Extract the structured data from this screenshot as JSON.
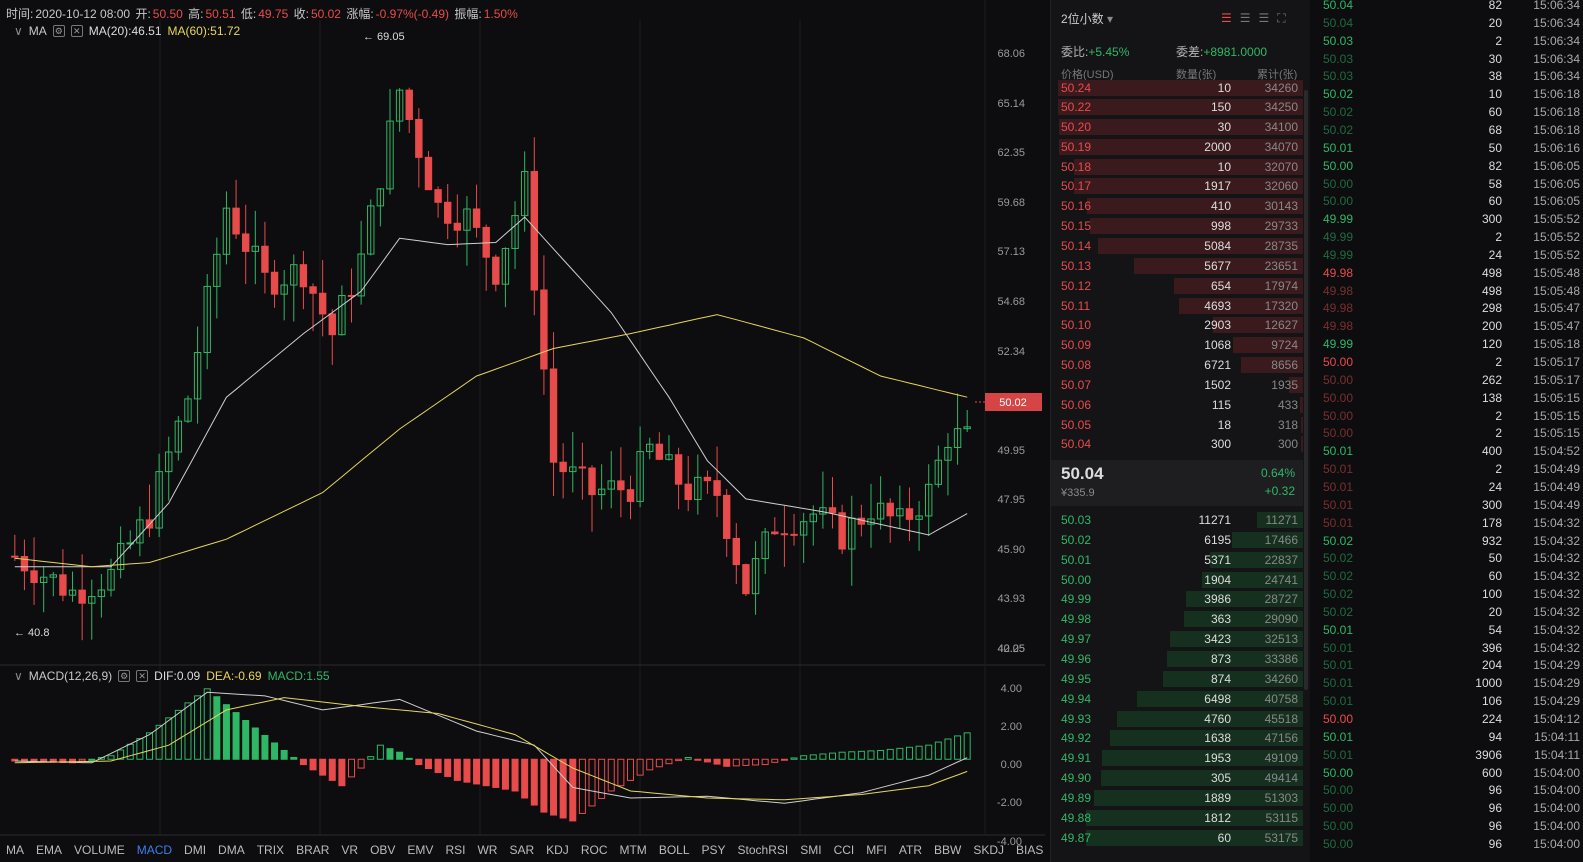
{
  "ohlc": {
    "time_label": "时间:",
    "time": "2020-10-12 08:00",
    "open_label": "开:",
    "open": "50.50",
    "high_label": "高:",
    "high": "50.51",
    "low_label": "低:",
    "low": "49.75",
    "close_label": "收:",
    "close": "50.02",
    "chg_label": "涨幅:",
    "chg": "-0.97%(-0.49)",
    "amp_label": "振幅:",
    "amp": "1.50%"
  },
  "ma_row": {
    "name": "MA",
    "ma20": "MA(20):46.51",
    "ma60": "MA(60):51.72"
  },
  "macd_row": {
    "name": "MACD(12,26,9)",
    "dif": "DIF:0.09",
    "dea": "DEA:-0.69",
    "macd": "MACD:1.55"
  },
  "annotations": {
    "high": "← 69.05",
    "low": "← 40.8",
    "current": "50.02"
  },
  "price_axis": [
    "68.06",
    "65.14",
    "62.35",
    "59.68",
    "57.13",
    "54.68",
    "52.34",
    "49.95",
    "47.95",
    "45.90",
    "43.93",
    "42.05",
    "40.25"
  ],
  "macd_axis": [
    "4.00",
    "2.00",
    "0.00",
    "-2.00",
    "-4.00"
  ],
  "indicator_tabs": [
    "MA",
    "EMA",
    "VOLUME",
    "MACD",
    "DMI",
    "DMA",
    "TRIX",
    "BRAR",
    "VR",
    "OBV",
    "EMV",
    "RSI",
    "WR",
    "SAR",
    "KDJ",
    "ROC",
    "MTM",
    "BOLL",
    "PSY",
    "StochRSI",
    "SMI",
    "CCI",
    "MFI",
    "ATR",
    "BBW",
    "SKDJ",
    "BIAS"
  ],
  "active_tab": "MACD",
  "colors": {
    "up": "#2fb765",
    "down": "#e84b4b",
    "ma20": "#cfcfcf",
    "ma60": "#e6d65a",
    "accent": "#3d7df0"
  },
  "chart_data": {
    "type": "candlestick",
    "ma20": "46.51",
    "ma60": "51.72",
    "high_marker": 69.05,
    "low_marker": 40.8,
    "last": 50.02,
    "macd": {
      "dif": 0.09,
      "dea": -0.69,
      "macd": 1.55
    }
  },
  "orderbook": {
    "precision": "2位小数",
    "ratio_label": "委比:",
    "ratio": "+5.45%",
    "diff_label": "委差:",
    "diff": "+8981.0000",
    "col_price": "价格(USD)",
    "col_qty": "数量(张)",
    "col_cum": "累计(张)",
    "asks": [
      [
        "50.24",
        "10",
        "34260"
      ],
      [
        "50.22",
        "150",
        "34250"
      ],
      [
        "50.20",
        "30",
        "34100"
      ],
      [
        "50.19",
        "2000",
        "34070"
      ],
      [
        "50.18",
        "10",
        "32070"
      ],
      [
        "50.17",
        "1917",
        "32060"
      ],
      [
        "50.16",
        "410",
        "30143"
      ],
      [
        "50.15",
        "998",
        "29733"
      ],
      [
        "50.14",
        "5084",
        "28735"
      ],
      [
        "50.13",
        "5677",
        "23651"
      ],
      [
        "50.12",
        "654",
        "17974"
      ],
      [
        "50.11",
        "4693",
        "17320"
      ],
      [
        "50.10",
        "2903",
        "12627"
      ],
      [
        "50.09",
        "1068",
        "9724"
      ],
      [
        "50.08",
        "6721",
        "8656"
      ],
      [
        "50.07",
        "1502",
        "1935"
      ],
      [
        "50.06",
        "115",
        "433"
      ],
      [
        "50.05",
        "18",
        "318"
      ],
      [
        "50.04",
        "300",
        "300"
      ]
    ],
    "last": "50.04",
    "last_cny": "¥335.9",
    "last_pct": "0.64%",
    "last_chg": "+0.32",
    "bids": [
      [
        "50.03",
        "11271",
        "11271"
      ],
      [
        "50.02",
        "6195",
        "17466"
      ],
      [
        "50.01",
        "5371",
        "22837"
      ],
      [
        "50.00",
        "1904",
        "24741"
      ],
      [
        "49.99",
        "3986",
        "28727"
      ],
      [
        "49.98",
        "363",
        "29090"
      ],
      [
        "49.97",
        "3423",
        "32513"
      ],
      [
        "49.96",
        "873",
        "33386"
      ],
      [
        "49.95",
        "874",
        "34260"
      ],
      [
        "49.94",
        "6498",
        "40758"
      ],
      [
        "49.93",
        "4760",
        "45518"
      ],
      [
        "49.92",
        "1638",
        "47156"
      ],
      [
        "49.91",
        "1953",
        "49109"
      ],
      [
        "49.90",
        "305",
        "49414"
      ],
      [
        "49.89",
        "1889",
        "51303"
      ],
      [
        "49.88",
        "1812",
        "53115"
      ],
      [
        "49.87",
        "60",
        "53175"
      ]
    ]
  },
  "trades": [
    [
      "50.04",
      "82",
      "15:06:34",
      "g"
    ],
    [
      "50.04",
      "20",
      "15:06:34",
      "gd"
    ],
    [
      "50.03",
      "2",
      "15:06:34",
      "g"
    ],
    [
      "50.03",
      "30",
      "15:06:34",
      "gd"
    ],
    [
      "50.03",
      "38",
      "15:06:34",
      "gd"
    ],
    [
      "50.02",
      "10",
      "15:06:18",
      "g"
    ],
    [
      "50.02",
      "60",
      "15:06:18",
      "gd"
    ],
    [
      "50.02",
      "68",
      "15:06:18",
      "gd"
    ],
    [
      "50.01",
      "50",
      "15:06:16",
      "g"
    ],
    [
      "50.00",
      "82",
      "15:06:05",
      "g"
    ],
    [
      "50.00",
      "58",
      "15:06:05",
      "gd"
    ],
    [
      "50.00",
      "60",
      "15:06:05",
      "gd"
    ],
    [
      "49.99",
      "300",
      "15:05:52",
      "g"
    ],
    [
      "49.99",
      "2",
      "15:05:52",
      "gd"
    ],
    [
      "49.99",
      "24",
      "15:05:52",
      "gd"
    ],
    [
      "49.98",
      "498",
      "15:05:48",
      "r"
    ],
    [
      "49.98",
      "498",
      "15:05:48",
      "rd"
    ],
    [
      "49.98",
      "298",
      "15:05:47",
      "rd"
    ],
    [
      "49.98",
      "200",
      "15:05:47",
      "rd"
    ],
    [
      "49.99",
      "120",
      "15:05:18",
      "g"
    ],
    [
      "50.00",
      "2",
      "15:05:17",
      "r"
    ],
    [
      "50.00",
      "262",
      "15:05:17",
      "rd"
    ],
    [
      "50.00",
      "138",
      "15:05:15",
      "rd"
    ],
    [
      "50.00",
      "2",
      "15:05:15",
      "rd"
    ],
    [
      "50.00",
      "2",
      "15:05:15",
      "rd"
    ],
    [
      "50.01",
      "400",
      "15:04:52",
      "g"
    ],
    [
      "50.01",
      "2",
      "15:04:49",
      "rd"
    ],
    [
      "50.01",
      "24",
      "15:04:49",
      "rd"
    ],
    [
      "50.01",
      "300",
      "15:04:49",
      "rd"
    ],
    [
      "50.01",
      "178",
      "15:04:32",
      "rd"
    ],
    [
      "50.02",
      "932",
      "15:04:32",
      "g"
    ],
    [
      "50.02",
      "50",
      "15:04:32",
      "gd"
    ],
    [
      "50.02",
      "60",
      "15:04:32",
      "gd"
    ],
    [
      "50.02",
      "100",
      "15:04:32",
      "gd"
    ],
    [
      "50.02",
      "20",
      "15:04:32",
      "gd"
    ],
    [
      "50.01",
      "54",
      "15:04:32",
      "g"
    ],
    [
      "50.01",
      "396",
      "15:04:32",
      "gd"
    ],
    [
      "50.01",
      "204",
      "15:04:29",
      "gd"
    ],
    [
      "50.01",
      "1000",
      "15:04:29",
      "gd"
    ],
    [
      "50.01",
      "106",
      "15:04:29",
      "gd"
    ],
    [
      "50.00",
      "224",
      "15:04:12",
      "r"
    ],
    [
      "50.01",
      "94",
      "15:04:11",
      "g"
    ],
    [
      "50.01",
      "3906",
      "15:04:11",
      "gd"
    ],
    [
      "50.00",
      "600",
      "15:04:00",
      "g"
    ],
    [
      "50.00",
      "96",
      "15:04:00",
      "gd"
    ],
    [
      "50.00",
      "96",
      "15:04:00",
      "gd"
    ],
    [
      "50.00",
      "96",
      "15:04:00",
      "gd"
    ],
    [
      "50.00",
      "96",
      "15:04:00",
      "gd"
    ]
  ]
}
